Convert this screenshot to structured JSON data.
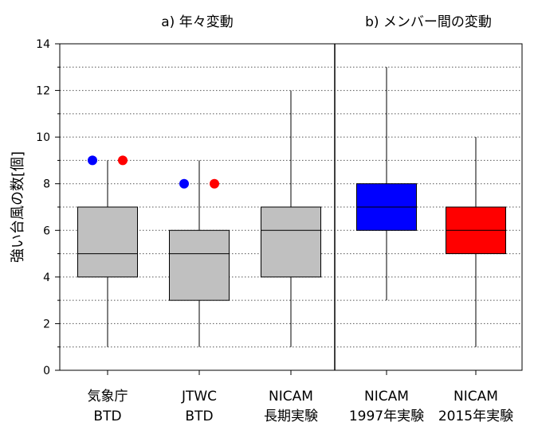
{
  "chart_data": {
    "type": "box",
    "ylabel": "強い台風の数[個]",
    "ylim": [
      0,
      14
    ],
    "yticks": [
      0,
      2,
      4,
      6,
      8,
      10,
      12,
      14
    ],
    "grid": "horizontal-dotted",
    "panels": [
      {
        "title": "a) 年々変動",
        "series_indices": [
          0,
          1,
          2
        ]
      },
      {
        "title": "b) メンバー間の変動",
        "series_indices": [
          3,
          4
        ]
      }
    ],
    "series": [
      {
        "label_line1": "気象庁",
        "label_line2": "BTD",
        "min": 1,
        "q1": 4,
        "median": 5,
        "q3": 7,
        "max": 9,
        "color": "#c0c0c0",
        "markers": [
          {
            "value": 9,
            "color": "#0000ff"
          },
          {
            "value": 9,
            "color": "#ff0000"
          }
        ]
      },
      {
        "label_line1": "JTWC",
        "label_line2": "BTD",
        "min": 1,
        "q1": 3,
        "median": 5,
        "q3": 6,
        "max": 9,
        "color": "#c0c0c0",
        "markers": [
          {
            "value": 8,
            "color": "#0000ff"
          },
          {
            "value": 8,
            "color": "#ff0000"
          }
        ]
      },
      {
        "label_line1": "NICAM",
        "label_line2": "長期実験",
        "min": 1,
        "q1": 4,
        "median": 6,
        "q3": 7,
        "max": 12,
        "color": "#c0c0c0",
        "markers": []
      },
      {
        "label_line1": "NICAM",
        "label_line2": "1997年実験",
        "min": 3,
        "q1": 6,
        "median": 7,
        "q3": 8,
        "max": 13,
        "color": "#0000ff",
        "markers": []
      },
      {
        "label_line1": "NICAM",
        "label_line2": "2015年実験",
        "min": 1,
        "q1": 5,
        "median": 6,
        "q3": 7,
        "max": 10,
        "color": "#ff0000",
        "markers": []
      }
    ]
  }
}
